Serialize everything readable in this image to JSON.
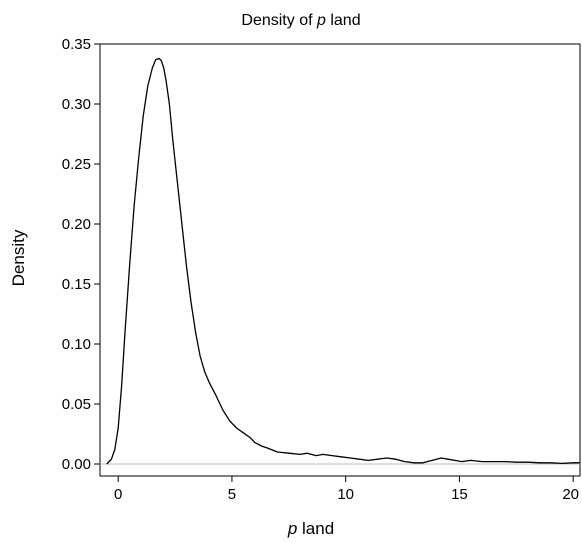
{
  "chart_data": {
    "type": "line",
    "title_prefix": "Density of ",
    "title_var": "p",
    "title_suffix": " land",
    "xlabel_var": "p",
    "xlabel_suffix": " land",
    "ylabel": "Density",
    "xlim": [
      -0.8,
      20.3
    ],
    "ylim": [
      -0.01,
      0.35
    ],
    "xticks": [
      0,
      5,
      10,
      15,
      20
    ],
    "xtick_labels": [
      "0",
      "5",
      "10",
      "15",
      "20"
    ],
    "yticks": [
      0,
      0.05,
      0.1,
      0.15,
      0.2,
      0.25,
      0.3,
      0.35
    ],
    "ytick_labels": [
      "0.00",
      "0.05",
      "0.10",
      "0.15",
      "0.20",
      "0.25",
      "0.30",
      "0.35"
    ],
    "baseline": 0,
    "grid": false,
    "series": [
      {
        "x": [
          -0.5,
          -0.3,
          -0.15,
          0.0,
          0.15,
          0.3,
          0.5,
          0.7,
          0.9,
          1.1,
          1.3,
          1.5,
          1.65,
          1.8,
          1.9,
          2.0,
          2.1,
          2.25,
          2.4,
          2.6,
          2.8,
          3.0,
          3.2,
          3.4,
          3.6,
          3.8,
          4.0,
          4.3,
          4.6,
          4.9,
          5.2,
          5.5,
          5.8,
          6.0,
          6.3,
          6.6,
          7.0,
          7.5,
          8.0,
          8.3,
          8.7,
          9.0,
          9.4,
          9.8,
          10.2,
          10.6,
          11.0,
          11.4,
          11.8,
          12.2,
          12.6,
          13.0,
          13.4,
          13.8,
          14.2,
          14.5,
          14.8,
          15.1,
          15.5,
          16.0,
          16.5,
          17.0,
          17.5,
          18.0,
          18.5,
          19.0,
          19.5,
          20.0,
          20.3
        ],
        "y": [
          0.0,
          0.004,
          0.012,
          0.03,
          0.065,
          0.11,
          0.165,
          0.215,
          0.255,
          0.29,
          0.315,
          0.33,
          0.337,
          0.338,
          0.336,
          0.33,
          0.32,
          0.3,
          0.27,
          0.235,
          0.2,
          0.165,
          0.135,
          0.11,
          0.09,
          0.077,
          0.068,
          0.057,
          0.045,
          0.036,
          0.03,
          0.026,
          0.022,
          0.018,
          0.015,
          0.013,
          0.01,
          0.009,
          0.008,
          0.009,
          0.007,
          0.008,
          0.007,
          0.006,
          0.005,
          0.004,
          0.003,
          0.004,
          0.005,
          0.004,
          0.002,
          0.001,
          0.001,
          0.003,
          0.005,
          0.004,
          0.003,
          0.002,
          0.003,
          0.002,
          0.002,
          0.002,
          0.0015,
          0.0015,
          0.001,
          0.001,
          0.0005,
          0.001,
          0.001
        ]
      }
    ]
  }
}
